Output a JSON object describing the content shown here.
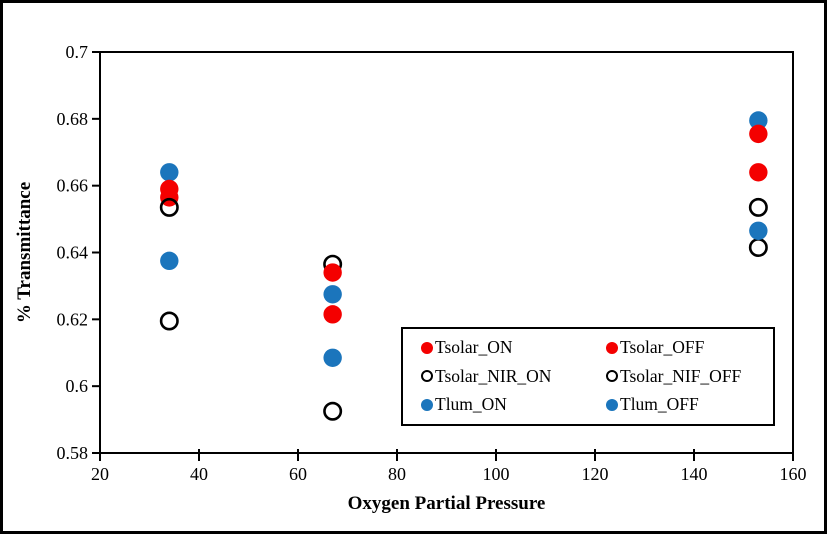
{
  "colors": {
    "red": "#f40000",
    "blue": "#1b75bc",
    "open_stroke": "#000000",
    "axis": "#000000",
    "background": "#ffffff"
  },
  "chart_data": {
    "type": "scatter",
    "title": "",
    "xlabel": "Oxygen Partial Pressure",
    "ylabel": "% Transmittance",
    "xlim": [
      20,
      160
    ],
    "ylim": [
      0.58,
      0.7
    ],
    "grid": false,
    "legend_position": "inside-bottom-right",
    "x_ticks": [
      {
        "v": 20,
        "label": "20"
      },
      {
        "v": 40,
        "label": "40"
      },
      {
        "v": 60,
        "label": "60"
      },
      {
        "v": 80,
        "label": "80"
      },
      {
        "v": 100,
        "label": "100"
      },
      {
        "v": 120,
        "label": "120"
      },
      {
        "v": 140,
        "label": "140"
      },
      {
        "v": 160,
        "label": "160"
      }
    ],
    "y_ticks": [
      {
        "v": 0.7,
        "label": "0.7"
      },
      {
        "v": 0.68,
        "label": "0.68"
      },
      {
        "v": 0.66,
        "label": "0.66"
      },
      {
        "v": 0.64,
        "label": "0.64"
      },
      {
        "v": 0.62,
        "label": "0.62"
      },
      {
        "v": 0.6,
        "label": "0.6"
      },
      {
        "v": 0.58,
        "label": "0.58"
      }
    ],
    "series": [
      {
        "name": "Tsolar_ON",
        "marker": {
          "shape": "circle",
          "fill": "#f40000",
          "stroke": "none"
        },
        "points": [
          [
            34,
            0.659
          ],
          [
            67,
            0.634
          ],
          [
            153,
            0.6755
          ]
        ]
      },
      {
        "name": "Tsolar_OFF",
        "marker": {
          "shape": "circle",
          "fill": "#f40000",
          "stroke": "none"
        },
        "points": [
          [
            34,
            0.6565
          ],
          [
            67,
            0.6215
          ],
          [
            153,
            0.664
          ]
        ]
      },
      {
        "name": "Tsolar_NIR_ON",
        "marker": {
          "shape": "circle",
          "fill": "none",
          "stroke": "#000000"
        },
        "points": [
          [
            34,
            0.6535
          ],
          [
            67,
            0.6365
          ],
          [
            153,
            0.6535
          ]
        ]
      },
      {
        "name": "Tsolar_NIF_OFF",
        "marker": {
          "shape": "circle",
          "fill": "none",
          "stroke": "#000000"
        },
        "points": [
          [
            34,
            0.6195
          ],
          [
            67,
            0.5925
          ],
          [
            153,
            0.6415
          ]
        ]
      },
      {
        "name": "Tlum_ON",
        "marker": {
          "shape": "circle",
          "fill": "#1b75bc",
          "stroke": "none"
        },
        "points": [
          [
            34,
            0.664
          ],
          [
            67,
            0.6275
          ],
          [
            153,
            0.6795
          ]
        ]
      },
      {
        "name": "Tlum_OFF",
        "marker": {
          "shape": "circle",
          "fill": "#1b75bc",
          "stroke": "none"
        },
        "points": [
          [
            34,
            0.6375
          ],
          [
            67,
            0.6085
          ],
          [
            153,
            0.6465
          ]
        ]
      }
    ],
    "draw_order": [
      [
        4,
        0
      ],
      [
        0,
        0
      ],
      [
        1,
        0
      ],
      [
        2,
        0
      ],
      [
        5,
        0
      ],
      [
        3,
        0
      ],
      [
        2,
        1
      ],
      [
        0,
        1
      ],
      [
        4,
        1
      ],
      [
        1,
        1
      ],
      [
        5,
        1
      ],
      [
        3,
        1
      ],
      [
        4,
        2
      ],
      [
        0,
        2
      ],
      [
        1,
        2
      ],
      [
        2,
        2
      ],
      [
        3,
        2
      ],
      [
        5,
        2
      ]
    ]
  }
}
